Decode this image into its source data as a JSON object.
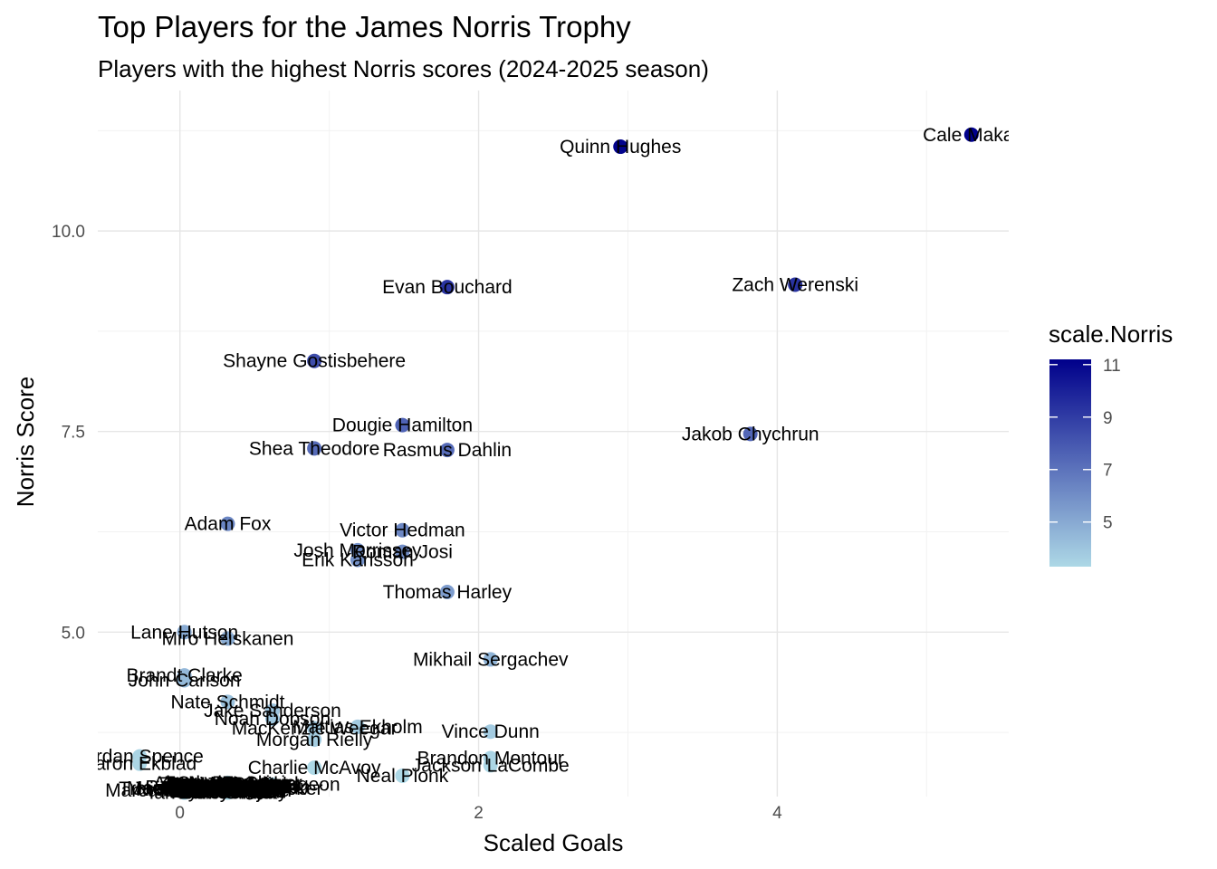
{
  "chart_data": {
    "type": "scatter",
    "title": "Top Players for the James Norris Trophy",
    "subtitle": "Players with the highest Norris scores (2024-2025 season)",
    "xlabel": "Scaled Goals",
    "ylabel": "Norris Score",
    "xlim": [
      -0.55,
      5.55
    ],
    "ylim": [
      2.95,
      11.75
    ],
    "x_ticks": [
      0,
      2,
      4
    ],
    "y_ticks": [
      5.0,
      7.5,
      10.0
    ],
    "x_tick_labels": [
      "0",
      "2",
      "4"
    ],
    "y_tick_labels": [
      "5.0",
      "7.5",
      "10.0"
    ],
    "grid": true,
    "legend": {
      "title": "scale.Norris",
      "placement": "right",
      "ticks": [
        5,
        7,
        9,
        11
      ],
      "tick_labels": [
        "5",
        "7",
        "9",
        "11"
      ],
      "range": [
        3.3,
        11.2
      ],
      "color_low": "#add8e6",
      "color_high": "#00008b"
    },
    "points": [
      {
        "name": "Cale Makar",
        "x": 5.3,
        "y": 11.2
      },
      {
        "name": "Quinn Hughes",
        "x": 2.95,
        "y": 11.05
      },
      {
        "name": "Evan Bouchard",
        "x": 1.79,
        "y": 9.3
      },
      {
        "name": "Zach Werenski",
        "x": 4.12,
        "y": 9.33
      },
      {
        "name": "Shayne Gostisbehere",
        "x": 0.9,
        "y": 8.38
      },
      {
        "name": "Dougie Hamilton",
        "x": 1.49,
        "y": 7.58
      },
      {
        "name": "Jakob Chychrun",
        "x": 3.82,
        "y": 7.47
      },
      {
        "name": "Shea Theodore",
        "x": 0.9,
        "y": 7.29
      },
      {
        "name": "Rasmus Dahlin",
        "x": 1.79,
        "y": 7.27
      },
      {
        "name": "Adam Fox",
        "x": 0.32,
        "y": 6.35
      },
      {
        "name": "Victor Hedman",
        "x": 1.49,
        "y": 6.27
      },
      {
        "name": "Josh Morrissey",
        "x": 1.19,
        "y": 6.02
      },
      {
        "name": "Roman Josi",
        "x": 1.49,
        "y": 6.0
      },
      {
        "name": "Erik Karlsson",
        "x": 1.19,
        "y": 5.9
      },
      {
        "name": "Thomas Harley",
        "x": 1.79,
        "y": 5.5
      },
      {
        "name": "Lane Hutson",
        "x": 0.03,
        "y": 5.0
      },
      {
        "name": "Miro Heiskanen",
        "x": 0.32,
        "y": 4.92
      },
      {
        "name": "Mikhail Sergachev",
        "x": 2.08,
        "y": 4.66
      },
      {
        "name": "Brandt Clarke",
        "x": 0.03,
        "y": 4.46
      },
      {
        "name": "John Carlson",
        "x": 0.03,
        "y": 4.4
      },
      {
        "name": "Nate Schmidt",
        "x": 0.32,
        "y": 4.13
      },
      {
        "name": "Jake Sanderson",
        "x": 0.62,
        "y": 4.02
      },
      {
        "name": "Noah Dobson",
        "x": 0.62,
        "y": 3.92
      },
      {
        "name": "MacKenzie Weegar",
        "x": 0.9,
        "y": 3.8
      },
      {
        "name": "Mattias Ekholm",
        "x": 1.19,
        "y": 3.82
      },
      {
        "name": "Vince Dunn",
        "x": 2.08,
        "y": 3.76
      },
      {
        "name": "Morgan Rielly",
        "x": 0.9,
        "y": 3.66
      },
      {
        "name": "Jordan Spence",
        "x": -0.27,
        "y": 3.45
      },
      {
        "name": "Aaron Ekblad",
        "x": -0.27,
        "y": 3.36
      },
      {
        "name": "Brandon Montour",
        "x": 2.08,
        "y": 3.43
      },
      {
        "name": "Jackson LaCombe",
        "x": 2.08,
        "y": 3.34
      },
      {
        "name": "Charlie McAvoy",
        "x": 0.9,
        "y": 3.31
      },
      {
        "name": "Neal Pionk",
        "x": 1.49,
        "y": 3.21
      },
      {
        "name": "Zach Bogosian",
        "x": 0.32,
        "y": 3.12
      },
      {
        "name": "Ryan Lindgren",
        "x": 0.32,
        "y": 3.11
      },
      {
        "name": "Jacob Trouba",
        "x": 0.32,
        "y": 3.1
      },
      {
        "name": "Nikita Zadorov",
        "x": 0.32,
        "y": 3.09
      },
      {
        "name": "Jake Walman",
        "x": 0.32,
        "y": 3.08
      },
      {
        "name": "Ryan Graves",
        "x": 0.32,
        "y": 3.07
      },
      {
        "name": "Mason Lohrei",
        "x": 0.03,
        "y": 3.06
      },
      {
        "name": "Travis Sanheim",
        "x": 0.03,
        "y": 3.05
      },
      {
        "name": "Nick Seeler",
        "x": 0.03,
        "y": 3.04
      },
      {
        "name": "Marcus Pettersson",
        "x": 0.03,
        "y": 3.03
      },
      {
        "name": "Ryan Pulock",
        "x": 0.32,
        "y": 3.02
      },
      {
        "name": "Brady Skjei",
        "x": 0.32,
        "y": 3.01
      },
      {
        "name": "Ian Cole",
        "x": 0.03,
        "y": 3.0
      },
      {
        "name": "Zach Whitecloud",
        "x": 0.32,
        "y": 3.11
      },
      {
        "name": "Ryan Suter",
        "x": 0.32,
        "y": 3.08
      },
      {
        "name": "Joel Edmundson",
        "x": 0.32,
        "y": 3.06
      },
      {
        "name": "Jonas Brodin",
        "x": 0.32,
        "y": 3.04
      },
      {
        "name": "Jake Middleton",
        "x": 0.32,
        "y": 3.03
      },
      {
        "name": "Alex Pietrangelo",
        "x": 0.32,
        "y": 3.05
      },
      {
        "name": "Seth Jones",
        "x": 0.32,
        "y": 3.02
      },
      {
        "name": "Jaccob Slavin",
        "x": 0.32,
        "y": 3.01
      },
      {
        "name": "Darnell Nurse",
        "x": 0.32,
        "y": 3.09
      },
      {
        "name": "Rasmus Andersson",
        "x": 0.32,
        "y": 3.07
      },
      {
        "name": "Devon Toews",
        "x": 0.32,
        "y": 3.1
      },
      {
        "name": "Cam Fowler",
        "x": 0.32,
        "y": 3.12
      },
      {
        "name": "Sam Girard",
        "x": 0.32,
        "y": 3.0
      },
      {
        "name": "Mike Matheson",
        "x": 0.32,
        "y": 3.06
      },
      {
        "name": "Filip Hronek",
        "x": 0.32,
        "y": 3.08
      },
      {
        "name": "Adam Pelech",
        "x": 0.32,
        "y": 3.11
      },
      {
        "name": "Owen Power",
        "x": 0.32,
        "y": 3.09
      },
      {
        "name": "Logan Stanley",
        "x": 0.32,
        "y": 3.1
      },
      {
        "name": "Jeff Petry",
        "x": 0.32,
        "y": 3.04
      },
      {
        "name": "Nick Jensen",
        "x": 0.32,
        "y": 3.02
      },
      {
        "name": "Justin Faulk",
        "x": 0.32,
        "y": 3.05
      },
      {
        "name": "Josh Manson",
        "x": 0.32,
        "y": 3.03
      },
      {
        "name": "Colton Parayko",
        "x": 0.32,
        "y": 3.07
      },
      {
        "name": "Ivan Provorov",
        "x": 0.32,
        "y": 3.01
      },
      {
        "name": "Alexandre Carrier",
        "x": 0.32,
        "y": 3.12
      },
      {
        "name": "Erik Cernak",
        "x": 0.32,
        "y": 3.0
      },
      {
        "name": "Kris Letang",
        "x": 0.32,
        "y": 3.06
      },
      {
        "name": "Torey Krug",
        "x": 0.32,
        "y": 3.08
      },
      {
        "name": "Jamie Oleksiak",
        "x": 0.32,
        "y": 3.1
      },
      {
        "name": "Will Borgen",
        "x": 0.32,
        "y": 3.04
      },
      {
        "name": "Carson Soucy",
        "x": 0.32,
        "y": 3.02
      },
      {
        "name": "Jacob Bernard-Docker",
        "x": 0.32,
        "y": 3.05
      },
      {
        "name": "Andrew Peeke",
        "x": 0.32,
        "y": 3.03
      },
      {
        "name": "Esa Lindell",
        "x": 0.32,
        "y": 3.09
      },
      {
        "name": "Matt Roy",
        "x": 0.32,
        "y": 3.11
      },
      {
        "name": "Jared Spurgeon",
        "x": 0.62,
        "y": 3.1
      }
    ]
  }
}
